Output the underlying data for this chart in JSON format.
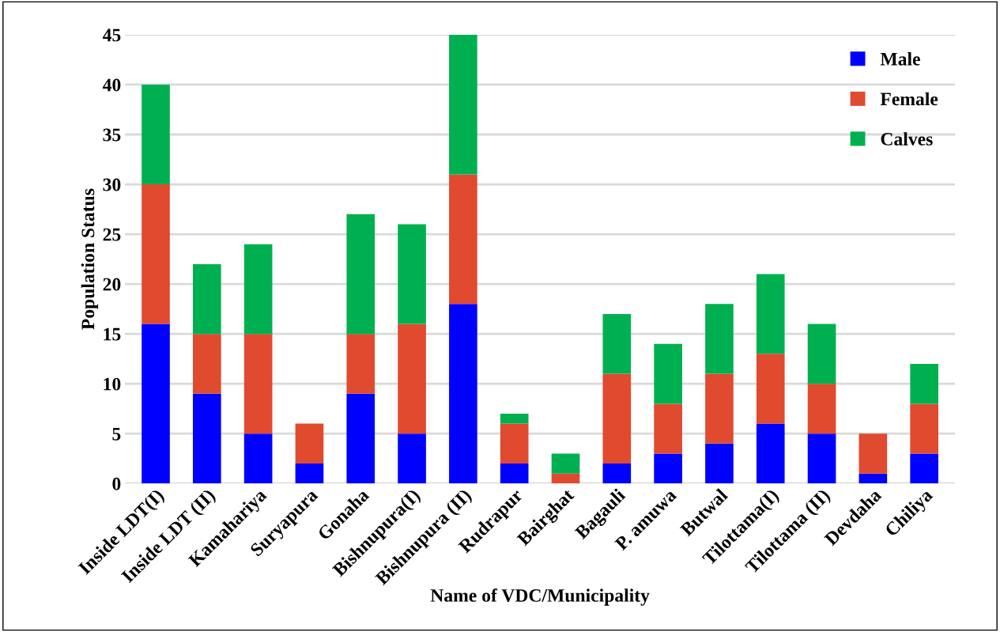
{
  "chart_data": {
    "type": "bar",
    "stacked": true,
    "xlabel": "Name of VDC/Municipality",
    "ylabel": "Population Status",
    "categories": [
      "Inside LDT(I)",
      "Inside LDT (II)",
      "Kamahariya",
      "Suryapura",
      "Gonaha",
      "Bishnupura(I)",
      "Bishnupura (II)",
      "Rudrapur",
      "Bairghat",
      "Bagauli",
      "P. amuwa",
      "Butwal",
      "Tilottama(I)",
      "Tilottama (II)",
      "Devdaha",
      "Chiliya"
    ],
    "series": [
      {
        "name": "Male",
        "color": "#0000ff",
        "values": [
          16,
          9,
          5,
          2,
          9,
          5,
          18,
          2,
          0,
          2,
          3,
          4,
          6,
          5,
          1,
          3
        ]
      },
      {
        "name": "Female",
        "color": "#e04a2f",
        "values": [
          14,
          6,
          10,
          4,
          6,
          11,
          13,
          4,
          1,
          9,
          5,
          7,
          7,
          5,
          4,
          5
        ]
      },
      {
        "name": "Calves",
        "color": "#00b050",
        "values": [
          10,
          7,
          9,
          0,
          12,
          10,
          14,
          1,
          2,
          6,
          6,
          7,
          8,
          6,
          0,
          4
        ]
      }
    ],
    "ylim": [
      0,
      45
    ],
    "yticks": [
      0,
      5,
      10,
      15,
      20,
      25,
      30,
      35,
      40,
      45
    ],
    "grid": "y",
    "legend": "top right"
  }
}
